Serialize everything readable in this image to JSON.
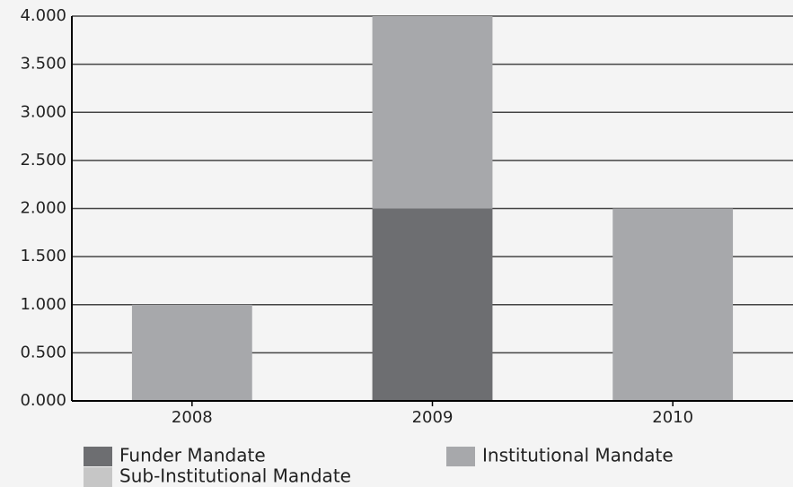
{
  "chart_data": {
    "type": "stacked_bar",
    "categories": [
      "2008",
      "2009",
      "2010"
    ],
    "series": [
      {
        "name": "Funder Mandate",
        "color": "#6d6e71",
        "values": [
          0,
          2,
          0
        ]
      },
      {
        "name": "Institutional Mandate",
        "color": "#a7a8ab",
        "values": [
          1,
          2,
          2
        ]
      },
      {
        "name": "Sub-Institutional Mandate",
        "color": "#c6c6c6",
        "values": [
          0,
          0,
          0
        ]
      }
    ],
    "ylim": [
      0,
      4
    ],
    "yticks": [
      {
        "value": 0,
        "label": "0.000"
      },
      {
        "value": 0.5,
        "label": "0.500"
      },
      {
        "value": 1,
        "label": "1.000"
      },
      {
        "value": 1.5,
        "label": "1.500"
      },
      {
        "value": 2,
        "label": "2.000"
      },
      {
        "value": 2.5,
        "label": "2.500"
      },
      {
        "value": 3,
        "label": "3.000"
      },
      {
        "value": 3.5,
        "label": "3.500"
      },
      {
        "value": 4,
        "label": "4.000"
      }
    ],
    "grid": true
  }
}
